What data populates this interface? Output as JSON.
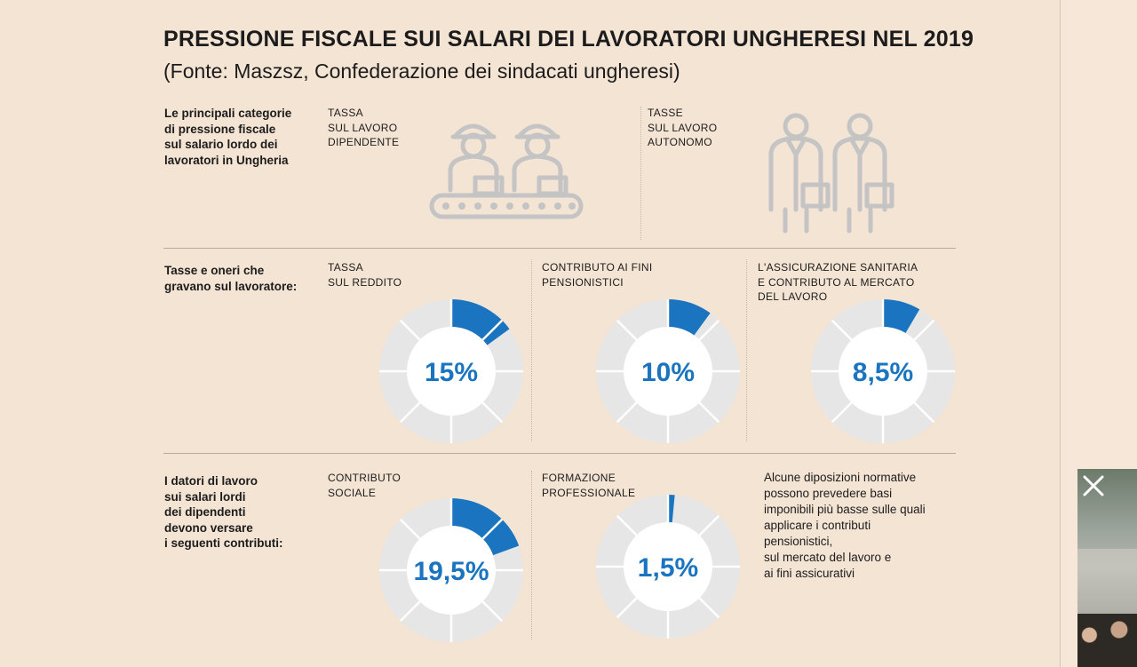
{
  "header": {
    "title": "PRESSIONE FISCALE SUI SALARI DEI LAVORATORI UNGHERESI NEL 2019",
    "subtitle": "(Fonte: Maszsz, Confederazione dei sindacati ungheresi)"
  },
  "rows": {
    "row1_label": "Le principali categorie\ndi pressione fiscale\nsul salario lordo dei\nlavoratori in Ungheria",
    "row2_label": "Tasse e oneri che\ngravano sul lavoratore:",
    "row3_label": "I datori di lavoro\nsui salari lordi\ndei dipendenti\ndevono versare\ni seguenti contributi:"
  },
  "categories": {
    "employee": "TASSA\nSUL LAVORO\nDIPENDENTE",
    "self_employed": "TASSE\nSUL LAVORO\nAUTONOMO"
  },
  "icons": {
    "employee": "factory-workers-conveyor-icon",
    "self_employed": "office-workers-briefcase-icon"
  },
  "note": "Alcune diposizioni normative\npossono prevedere basi\nimponibili più basse sulle quali\napplicare i contributi\npensionistici,\nsul mercato del lavoro e\nai fini assicurativi",
  "colors": {
    "accent": "#1a74bf",
    "ring": "#e6e6e6",
    "background": "#f4e4d4"
  },
  "chart_data": [
    {
      "type": "pie",
      "name": "TASSA\nSUL REDDITO",
      "value": 15,
      "label": "15%"
    },
    {
      "type": "pie",
      "name": "CONTRIBUTO AI FINI\nPENSIONISTICI",
      "value": 10,
      "label": "10%"
    },
    {
      "type": "pie",
      "name": "L'ASSICURAZIONE SANITARIA\nE CONTRIBUTO AL MERCATO\nDEL LAVORO",
      "value": 8.5,
      "label": "8,5%"
    },
    {
      "type": "pie",
      "name": "CONTRIBUTO\nSOCIALE",
      "value": 19.5,
      "label": "19,5%"
    },
    {
      "type": "pie",
      "name": "FORMAZIONE\nPROFESSIONALE",
      "value": 1.5,
      "label": "1,5%"
    }
  ]
}
